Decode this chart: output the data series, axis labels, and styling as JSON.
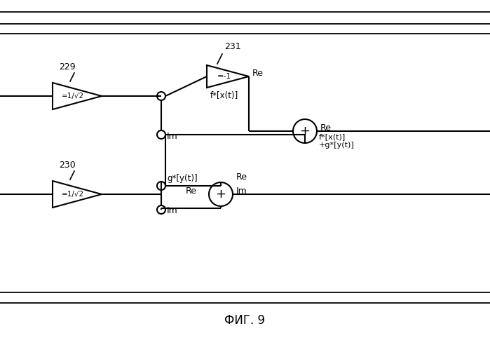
{
  "bg_color": "#ffffff",
  "line_color": "#000000",
  "title": "ФИГ. 9",
  "title_fontsize": 12,
  "label_229": "229",
  "label_230": "230",
  "label_231": "231",
  "label_re": "Re",
  "label_im": "Im",
  "label_fx": "f*[x(t)]",
  "label_gy": "g*[y(t)]",
  "label_fxgy": "f*[x(t)]\n+g*[y(t)]",
  "label_minus1": "=-1",
  "label_1sqrt2": "=1/√2"
}
